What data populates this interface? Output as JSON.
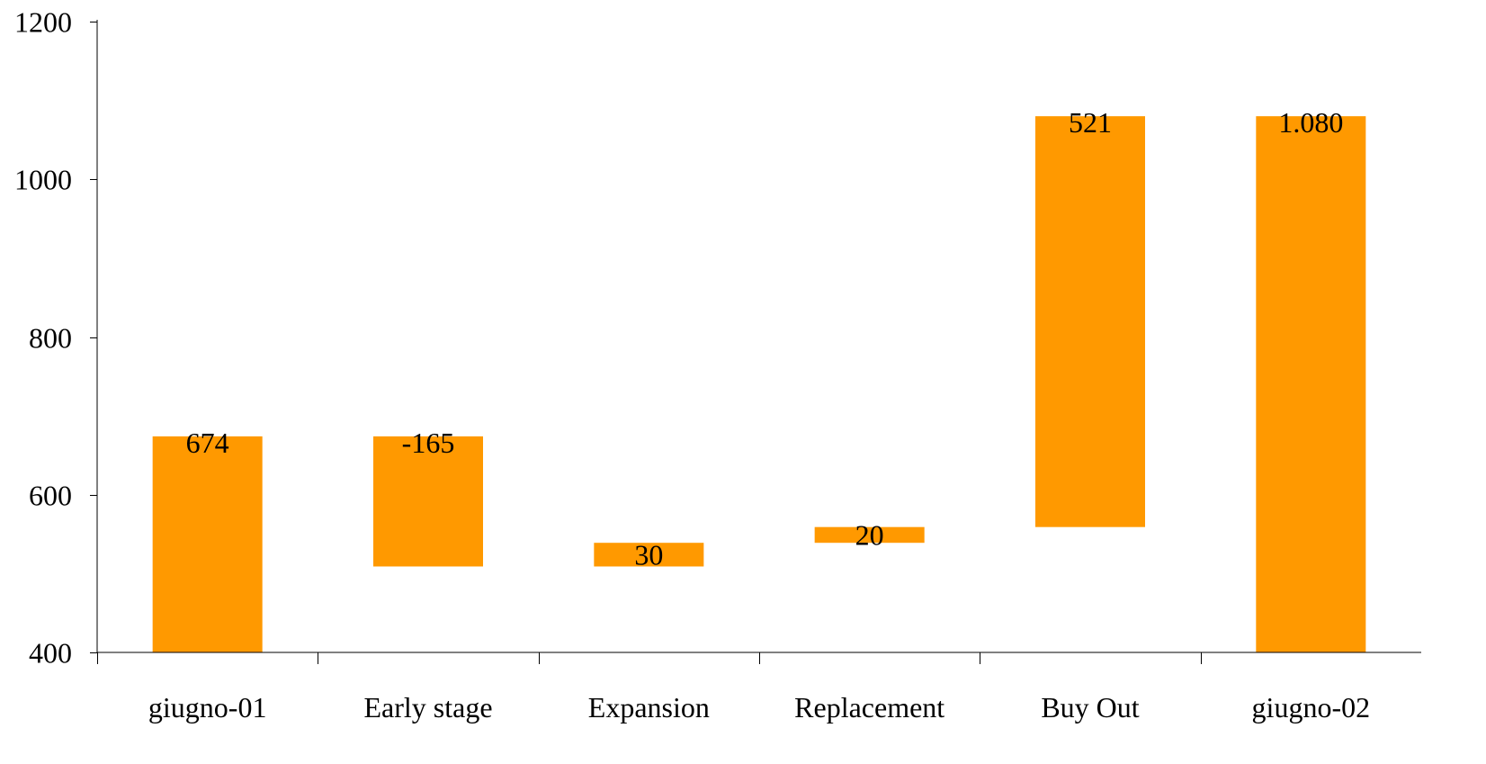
{
  "chart_data": {
    "type": "bar",
    "subtype": "waterfall",
    "categories": [
      "giugno-01",
      "Early stage",
      "Expansion",
      "Replacement",
      "Buy Out",
      "giugno-02"
    ],
    "series": [
      {
        "base": [
          400,
          509,
          509,
          539,
          559,
          400
        ],
        "top": [
          674,
          674,
          539,
          559,
          1080,
          1080
        ],
        "labels": [
          "674",
          "-165",
          "30",
          "20",
          "521",
          "1.080"
        ]
      }
    ],
    "ylim": [
      400,
      1200
    ],
    "yticks": [
      400,
      600,
      800,
      1000,
      1200
    ],
    "ytick_labels": [
      "400",
      "600",
      "800",
      "1000",
      "1200"
    ],
    "bar_color": "#FF9900",
    "grid": false,
    "legend": "none"
  }
}
